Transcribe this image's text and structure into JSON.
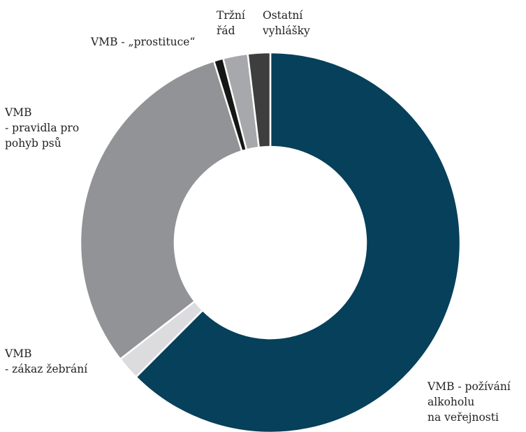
{
  "chart_data": {
    "type": "pie",
    "variant": "donut",
    "title": "",
    "start_angle_deg": 0,
    "direction": "clockwise",
    "slices": [
      {
        "label": [
          "VMB - požívání",
          "alkoholu",
          "na veřejnosti"
        ],
        "value": 62.5,
        "color": "#06405a"
      },
      {
        "label": [
          "VMB",
          "- zákaz žebrání"
        ],
        "value": 2.0,
        "color": "#dcdcde"
      },
      {
        "label": [
          "VMB",
          "- pravidla pro",
          "pohyb psů"
        ],
        "value": 30.7,
        "color": "#929396"
      },
      {
        "label": [
          "VMB - „prostituce“"
        ],
        "value": 0.8,
        "color": "#161616"
      },
      {
        "label": [
          "Tržní",
          "řád"
        ],
        "value": 2.1,
        "color": "#a7a8ab"
      },
      {
        "label": [
          "Ostatní",
          "vyhlášky"
        ],
        "value": 1.9,
        "color": "#3e3e3e"
      }
    ]
  }
}
